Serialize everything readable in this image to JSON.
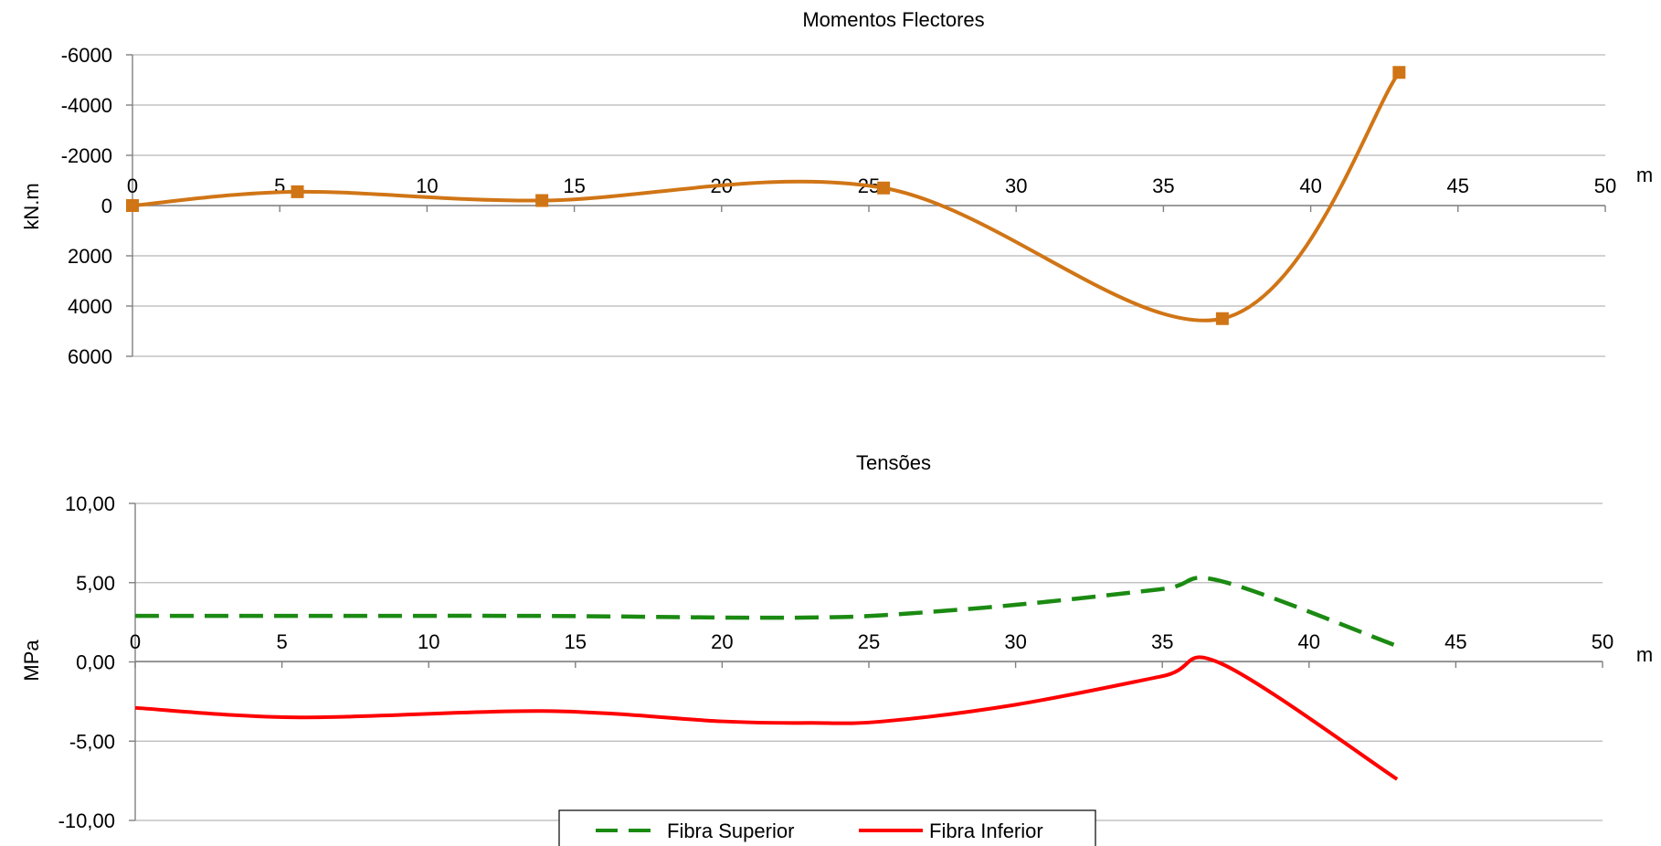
{
  "chart_data": [
    {
      "type": "line",
      "title": "Momentos Flectores",
      "ylabel": "kN.m",
      "xunit": "m",
      "xlim": [
        0,
        50
      ],
      "ylim": [
        -6000,
        6000
      ],
      "y_reversed": true,
      "xticks": [
        "0",
        "5",
        "10",
        "15",
        "20",
        "25",
        "30",
        "35",
        "40",
        "45",
        "50"
      ],
      "yticks": [
        "-6000",
        "-4000",
        "-2000",
        "0",
        "2000",
        "4000",
        "6000"
      ],
      "grid": true,
      "series": [
        {
          "color": "#d07516",
          "marker": "square",
          "smooth": true,
          "x": [
            0,
            5.6,
            13.9,
            25.5,
            37,
            43
          ],
          "y": [
            0,
            -550,
            -200,
            -700,
            4500,
            -5300
          ]
        }
      ]
    },
    {
      "type": "line",
      "title": "Tensões",
      "ylabel": "MPa",
      "xunit": "m",
      "xlim": [
        0,
        50
      ],
      "ylim": [
        -10,
        10
      ],
      "xticks": [
        "0",
        "5",
        "10",
        "15",
        "20",
        "25",
        "30",
        "35",
        "40",
        "45",
        "50"
      ],
      "yticks": [
        "10,00",
        "5,00",
        "0,00",
        "-5,00",
        "-10,00"
      ],
      "grid": true,
      "legend_position": "bottom",
      "series": [
        {
          "name": "Fibra Superior",
          "color": "#1b8a12",
          "style": "dashed",
          "x": [
            0,
            5.6,
            13.9,
            20,
            23,
            25.5,
            30,
            35,
            37,
            43
          ],
          "y": [
            2.9,
            2.9,
            2.9,
            2.8,
            2.8,
            2.95,
            3.6,
            4.6,
            5.1,
            1.0
          ]
        },
        {
          "name": "Fibra Inferior",
          "color": "#ff0000",
          "style": "solid",
          "x": [
            0,
            5.6,
            13.9,
            20,
            23,
            25.5,
            30,
            35,
            37,
            43
          ],
          "y": [
            -2.9,
            -3.5,
            -3.1,
            -3.75,
            -3.85,
            -3.75,
            -2.7,
            -0.9,
            -0.1,
            -7.4
          ]
        }
      ]
    }
  ]
}
